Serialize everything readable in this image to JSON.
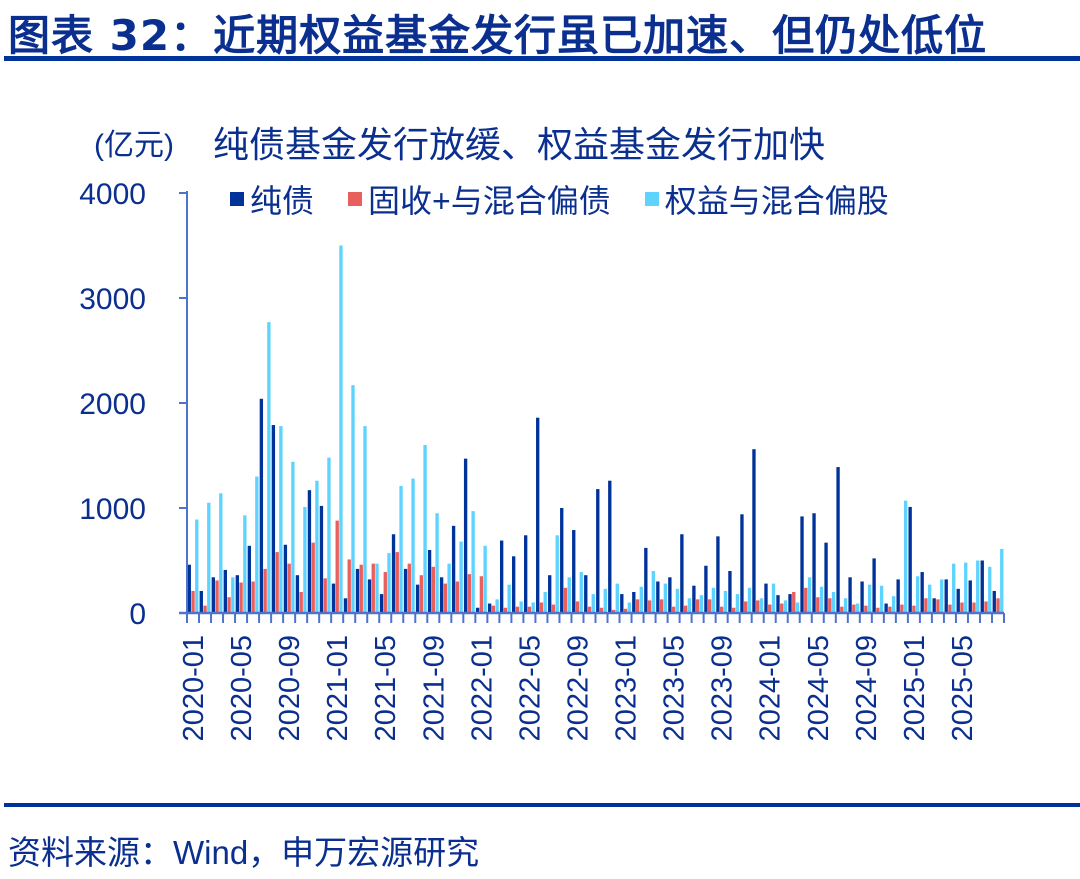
{
  "header": {
    "title": "图表 32：近期权益基金发行虽已加速、但仍处低位"
  },
  "chart_header": {
    "unit": "(亿元)",
    "subtitle": "纯债基金发行放缓、权益基金发行加快"
  },
  "legend": [
    {
      "label": "纯债",
      "color": "#003399"
    },
    {
      "label": "固收+与混合偏债",
      "color": "#e8605e"
    },
    {
      "label": "权益与混合偏股",
      "color": "#5fd3ff"
    }
  ],
  "footer": {
    "source": "资料来源：Wind，申万宏源研究"
  },
  "chart_data": {
    "type": "bar",
    "title": "纯债基金发行放缓、权益基金发行加快",
    "xlabel": "",
    "ylabel": "(亿元)",
    "ylim": [
      0,
      4000
    ],
    "yticks": [
      0,
      1000,
      2000,
      3000,
      4000
    ],
    "xtick_labels": [
      "2020-01",
      "2020-05",
      "2020-09",
      "2021-01",
      "2021-05",
      "2021-09",
      "2022-01",
      "2022-05",
      "2022-09",
      "2023-01",
      "2023-05",
      "2023-09",
      "2024-01",
      "2024-05",
      "2024-09",
      "2025-01",
      "2025-05"
    ],
    "legend_position": "top",
    "grid": false,
    "categories": [
      "2020-01",
      "2020-02",
      "2020-03",
      "2020-04",
      "2020-05",
      "2020-06",
      "2020-07",
      "2020-08",
      "2020-09",
      "2020-10",
      "2020-11",
      "2020-12",
      "2021-01",
      "2021-02",
      "2021-03",
      "2021-04",
      "2021-05",
      "2021-06",
      "2021-07",
      "2021-08",
      "2021-09",
      "2021-10",
      "2021-11",
      "2021-12",
      "2022-01",
      "2022-02",
      "2022-03",
      "2022-04",
      "2022-05",
      "2022-06",
      "2022-07",
      "2022-08",
      "2022-09",
      "2022-10",
      "2022-11",
      "2022-12",
      "2023-01",
      "2023-02",
      "2023-03",
      "2023-04",
      "2023-05",
      "2023-06",
      "2023-07",
      "2023-08",
      "2023-09",
      "2023-10",
      "2023-11",
      "2023-12",
      "2024-01",
      "2024-02",
      "2024-03",
      "2024-04",
      "2024-05",
      "2024-06",
      "2024-07",
      "2024-08",
      "2024-09",
      "2024-10",
      "2024-11",
      "2024-12",
      "2025-01",
      "2025-02",
      "2025-03",
      "2025-04",
      "2025-05",
      "2025-06",
      "2025-07",
      "2025-08"
    ],
    "series": [
      {
        "name": "纯债",
        "color": "#003399",
        "values": [
          460,
          210,
          340,
          410,
          360,
          640,
          2040,
          1790,
          650,
          360,
          1170,
          1020,
          280,
          140,
          420,
          320,
          180,
          750,
          420,
          270,
          600,
          340,
          830,
          1470,
          50,
          90,
          690,
          540,
          740,
          1860,
          360,
          1000,
          790,
          360,
          1180,
          1260,
          180,
          200,
          620,
          300,
          340,
          750,
          260,
          450,
          730,
          400,
          940,
          1560,
          280,
          170,
          180,
          920,
          950,
          670,
          1390,
          340,
          300,
          520,
          90,
          320,
          1010,
          390,
          140,
          320,
          230,
          310,
          500,
          210
        ]
      },
      {
        "name": "固收+与混合偏债",
        "color": "#e8605e",
        "values": [
          210,
          70,
          310,
          150,
          290,
          300,
          420,
          580,
          470,
          200,
          670,
          330,
          880,
          510,
          460,
          470,
          390,
          580,
          470,
          360,
          440,
          280,
          300,
          370,
          350,
          70,
          50,
          60,
          60,
          100,
          80,
          240,
          110,
          60,
          50,
          30,
          40,
          130,
          120,
          130,
          60,
          70,
          130,
          130,
          60,
          50,
          110,
          120,
          80,
          90,
          200,
          240,
          150,
          140,
          60,
          80,
          70,
          50,
          60,
          80,
          70,
          140,
          130,
          80,
          100,
          100,
          110,
          140
        ]
      },
      {
        "name": "权益与混合偏股",
        "color": "#5fd3ff",
        "values": [
          890,
          1050,
          1140,
          340,
          930,
          1300,
          2770,
          1780,
          1440,
          1010,
          1260,
          1480,
          3500,
          2170,
          1780,
          470,
          570,
          1210,
          1280,
          1600,
          950,
          470,
          680,
          970,
          640,
          130,
          270,
          110,
          100,
          200,
          740,
          340,
          390,
          180,
          230,
          280,
          100,
          250,
          400,
          280,
          230,
          140,
          170,
          240,
          210,
          180,
          240,
          140,
          280,
          120,
          100,
          340,
          250,
          200,
          140,
          90,
          270,
          260,
          160,
          1070,
          350,
          270,
          320,
          470,
          480,
          500,
          440,
          610
        ]
      }
    ]
  }
}
